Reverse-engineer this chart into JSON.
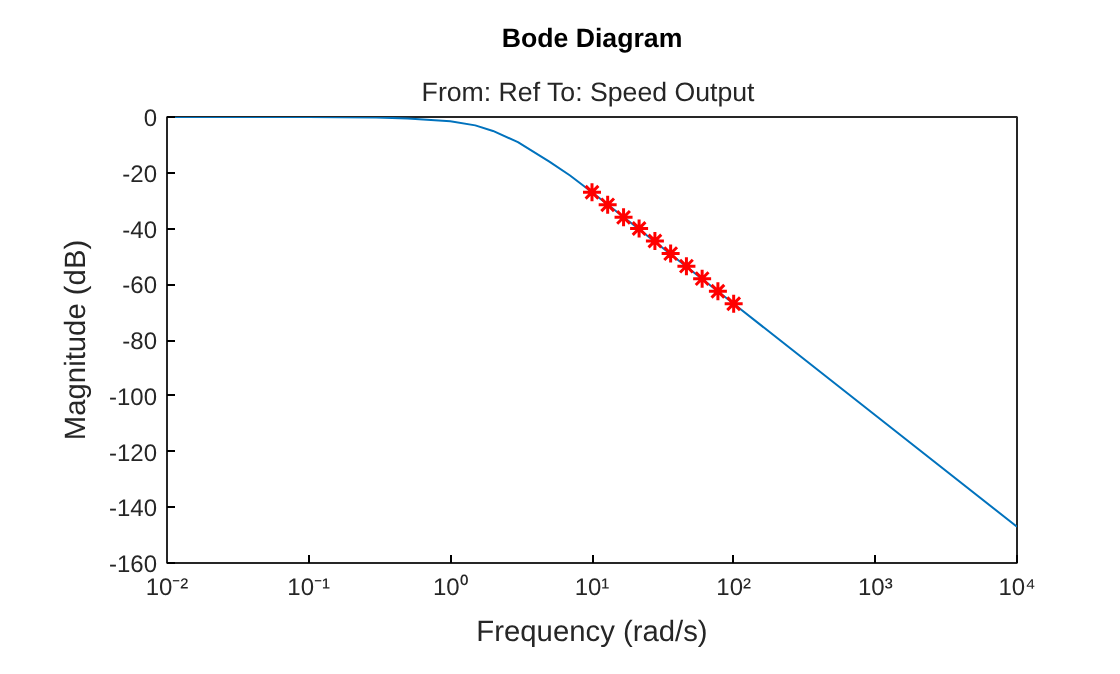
{
  "chart_data": {
    "type": "line",
    "title": "Bode Diagram",
    "subtitle": "From: Ref  To: Speed Output",
    "xlabel": "Frequency (rad/s)",
    "ylabel": "Magnitude (dB)",
    "log": "x",
    "grid": false,
    "xlim": [
      0.01,
      10000
    ],
    "ylim": [
      -160,
      0
    ],
    "xticks": [
      {
        "value": 0.01,
        "label": "10⁻²"
      },
      {
        "value": 0.1,
        "label": "10⁻¹"
      },
      {
        "value": 1,
        "label": "10⁰"
      },
      {
        "value": 10,
        "label": "10¹"
      },
      {
        "value": 100,
        "label": "10²"
      },
      {
        "value": 1000,
        "label": "10³"
      },
      {
        "value": 10000,
        "label": "10⁴"
      }
    ],
    "yticks": [
      -160,
      -140,
      -120,
      -100,
      -80,
      -60,
      -40,
      -20,
      0
    ],
    "series": [
      {
        "color": "#0072bd",
        "marker": "none",
        "line_style": "solid",
        "x": [
          0.01,
          0.1,
          0.3,
          0.5,
          1,
          1.5,
          2,
          3,
          5,
          7,
          10,
          20,
          50,
          100,
          1000,
          10000
        ],
        "values": [
          0,
          0,
          -0.2,
          -0.5,
          -1.5,
          -3,
          -5,
          -9,
          -16,
          -21,
          -27,
          -39,
          -55,
          -67,
          -107,
          -147
        ]
      },
      {
        "type": "scatter",
        "color": "#ff0000",
        "marker": "cross",
        "x": [
          10,
          12.9,
          16.7,
          21.5,
          27.8,
          35.9,
          46.4,
          59.9,
          77.4,
          100
        ],
        "values": [
          -27,
          -31.5,
          -36,
          -40,
          -44.5,
          -49,
          -53.5,
          -58,
          -62.5,
          -67
        ]
      }
    ]
  }
}
